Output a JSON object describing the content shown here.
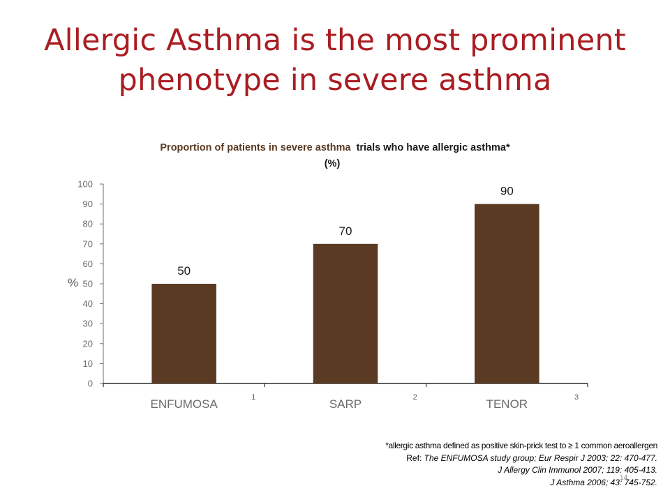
{
  "slide": {
    "title_line1": "Allergic Asthma is the most prominent",
    "title_line2": "phenotype in severe asthma",
    "page_number": "14"
  },
  "colors": {
    "title": "#a91d22",
    "bar": "#5a3a22",
    "chart_title": "#5a3a22",
    "axis": "#6e6e6e"
  },
  "chart_data": {
    "type": "bar",
    "title_line1_part1": "Proportion of patients in severe asthma",
    "title_line1_part2": "trials who have allergic asthma*",
    "title_line2": "(%)",
    "ylabel": "%",
    "xlabel": "",
    "ylim": [
      0,
      100
    ],
    "y_ticks": [
      0,
      10,
      20,
      30,
      40,
      50,
      60,
      70,
      80,
      90,
      100
    ],
    "categories": [
      "ENFUMOSA",
      "SARP",
      "TENOR"
    ],
    "reference_marks": [
      "1",
      "2",
      "3"
    ],
    "values": [
      50,
      70,
      90
    ],
    "data_labels": [
      "50",
      "70",
      "90"
    ],
    "grid": false,
    "legend": "none"
  },
  "footnotes": {
    "definition": "*allergic asthma defined as positive skin-prick test to ≥ 1 common aeroallergen",
    "ref1_prefix": "Ref: ",
    "ref1_italic": "The ENFUMOSA study group; Eur Respir J 2003;  22:  470-477.",
    "ref2": "J Allergy Clin Immunol 2007;  119:  405-413.",
    "ref3": "J Asthma 2006;  43:  745-752."
  }
}
